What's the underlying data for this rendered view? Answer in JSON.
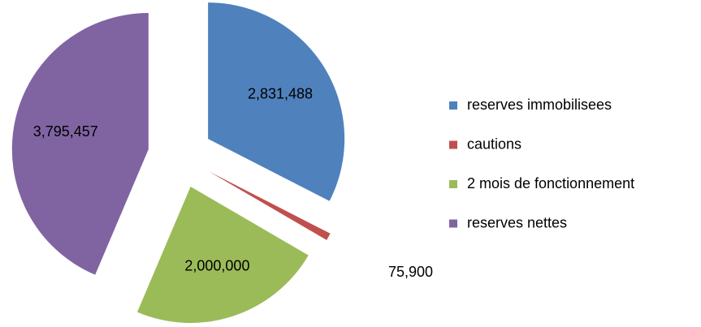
{
  "chart_data": {
    "type": "pie",
    "categories": [
      "reserves immobilisees",
      "cautions",
      "2 mois de fonctionnement",
      "reserves nettes"
    ],
    "values": [
      2831488,
      75900,
      2000000,
      3795457
    ],
    "value_labels": [
      "2,831,488",
      "75,900",
      "2,000,000",
      "3,795,457"
    ],
    "colors": [
      "#4f81bd",
      "#c0504d",
      "#9bbb59",
      "#8064a2"
    ],
    "legend": "right"
  }
}
